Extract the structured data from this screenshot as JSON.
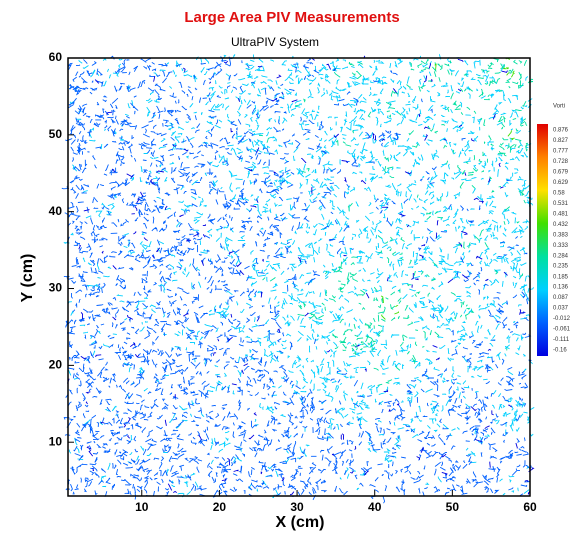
{
  "chart_data": {
    "type": "contour",
    "title": "Large Area PIV Measurements",
    "subtitle": "UltraPIV System",
    "x_label": "X (cm)",
    "y_label": "Y (cm)",
    "xlim": [
      0.5,
      60
    ],
    "xticks": [
      10,
      20,
      30,
      40,
      50,
      60
    ],
    "ylim": [
      3,
      60
    ],
    "yticks": [
      10,
      20,
      30,
      40,
      50,
      60
    ],
    "colorbar": {
      "label": "Vorti",
      "levels": [
        0.876,
        0.827,
        0.777,
        0.728,
        0.679,
        0.629,
        0.58,
        0.531,
        0.481,
        0.432,
        0.383,
        0.333,
        0.284,
        0.235,
        0.185,
        0.136,
        0.087,
        0.037,
        -0.012,
        -0.061,
        -0.111,
        -0.16
      ],
      "colors": [
        "#e00000",
        "#ff8000",
        "#ffe000",
        "#40e000",
        "#00e0a0",
        "#00d0ff",
        "#0060ff",
        "#0000e0"
      ]
    },
    "title_color": "#e01010"
  }
}
